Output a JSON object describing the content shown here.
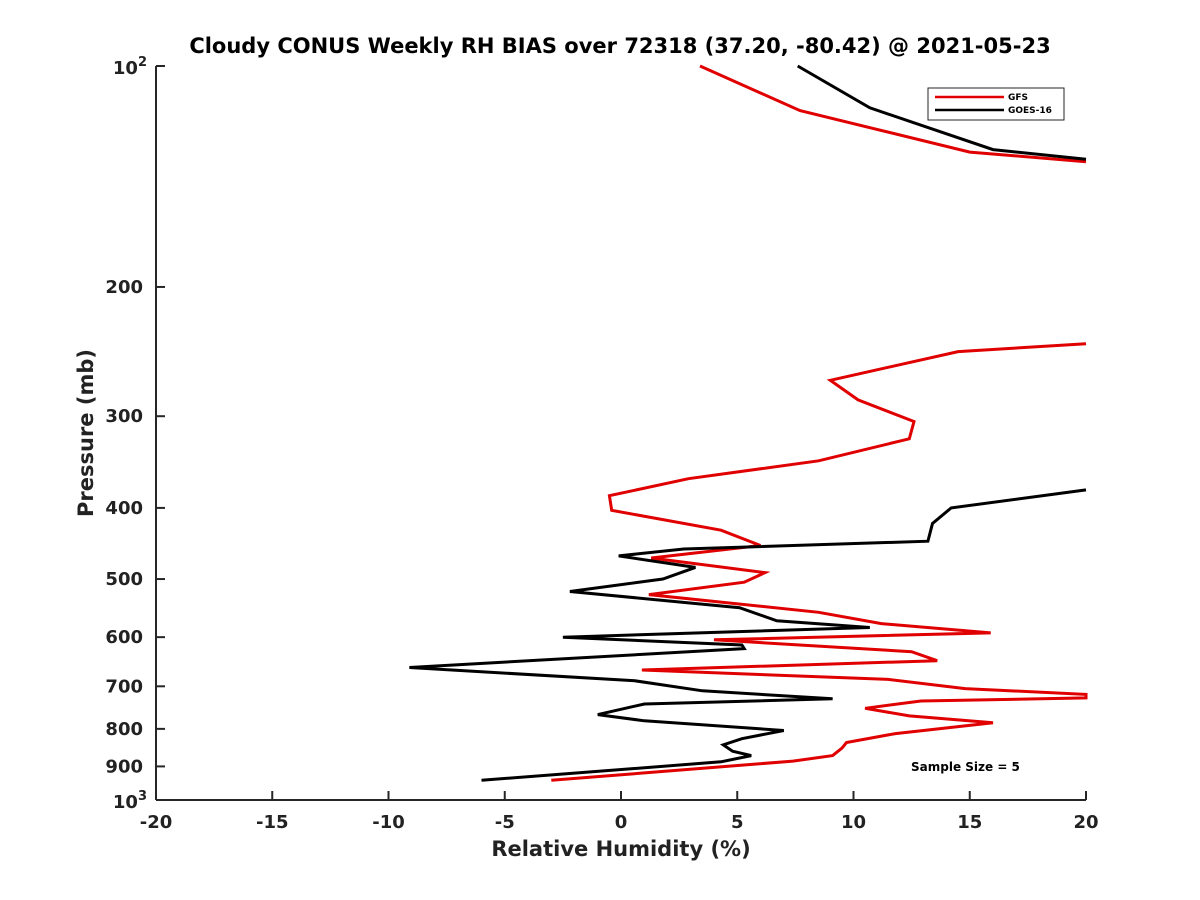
{
  "chart_data": {
    "type": "line",
    "title": "Cloudy CONUS Weekly RH BIAS over 72318 (37.20, -80.42) @ 2021-05-23",
    "xlabel": "Relative Humidity (%)",
    "ylabel": "Pressure (mb)",
    "xlim": [
      -20,
      20
    ],
    "ylim": [
      100,
      1000
    ],
    "yscale": "log",
    "y_reversed": true,
    "x_ticks": [
      -20,
      -15,
      -10,
      -5,
      0,
      5,
      10,
      15,
      20
    ],
    "x_tick_labels": [
      "-20",
      "-15",
      "-10",
      "-5",
      "0",
      "5",
      "10",
      "15",
      "20"
    ],
    "y_ticks": [
      200,
      300,
      400,
      500,
      600,
      700,
      800,
      900
    ],
    "y_tick_labels": [
      "200",
      "300",
      "400",
      "500",
      "600",
      "700",
      "800",
      "900"
    ],
    "y_end_labels": [
      {
        "value": 100,
        "base": "10",
        "exp": "2"
      },
      {
        "value": 1000,
        "base": "10",
        "exp": "3"
      }
    ],
    "annotation": "Sample Size = 5",
    "legend_position": "top-right",
    "series": [
      {
        "name": "GFS",
        "color": "#e00000",
        "segments": [
          [
            [
              3.4,
              100
            ],
            [
              7.7,
              115
            ],
            [
              15.0,
              131
            ],
            [
              20.0,
              135
            ]
          ],
          [
            [
              20.0,
              239
            ],
            [
              14.5,
              245
            ],
            [
              9.0,
              268
            ],
            [
              10.2,
              285
            ],
            [
              12.6,
              305
            ],
            [
              12.4,
              322
            ],
            [
              8.5,
              345
            ],
            [
              2.9,
              365
            ],
            [
              -0.5,
              385
            ],
            [
              -0.4,
              403
            ],
            [
              4.3,
              429
            ],
            [
              6.0,
              450
            ],
            [
              1.3,
              468
            ],
            [
              6.2,
              490
            ],
            [
              5.3,
              505
            ],
            [
              1.2,
              525
            ],
            [
              8.5,
              555
            ],
            [
              11.2,
              575
            ],
            [
              15.9,
              592
            ],
            [
              4.0,
              605
            ],
            [
              12.5,
              628
            ],
            [
              13.6,
              646
            ],
            [
              0.9,
              665
            ],
            [
              11.5,
              685
            ],
            [
              14.8,
              705
            ],
            [
              20.0,
              718
            ],
            [
              20.0,
              726
            ],
            [
              12.9,
              733
            ],
            [
              10.5,
              750
            ],
            [
              12.4,
              768
            ],
            [
              16.0,
              785
            ],
            [
              11.8,
              812
            ],
            [
              9.7,
              835
            ],
            [
              9.5,
              850
            ],
            [
              9.1,
              870
            ],
            [
              7.4,
              885
            ],
            [
              -3.0,
              940
            ]
          ]
        ]
      },
      {
        "name": "GOES-16",
        "color": "#000000",
        "segments": [
          [
            [
              7.6,
              100
            ],
            [
              10.7,
              114
            ],
            [
              16.0,
              130
            ],
            [
              20.0,
              134
            ]
          ],
          [
            [
              20.0,
              378
            ],
            [
              19.2,
              381
            ],
            [
              14.2,
              400
            ],
            [
              13.4,
              420
            ],
            [
              13.2,
              444
            ],
            [
              2.7,
              455
            ],
            [
              -0.1,
              465
            ],
            [
              3.2,
              482
            ],
            [
              1.8,
              500
            ],
            [
              -2.2,
              520
            ],
            [
              5.1,
              547
            ],
            [
              6.7,
              570
            ],
            [
              10.7,
              582
            ],
            [
              -2.5,
              600
            ],
            [
              5.2,
              615
            ],
            [
              5.3,
              622
            ],
            [
              -9.1,
              660
            ],
            [
              0.6,
              688
            ],
            [
              3.5,
              710
            ],
            [
              9.1,
              728
            ],
            [
              1.0,
              740
            ],
            [
              -1.0,
              765
            ],
            [
              1.0,
              780
            ],
            [
              7.0,
              804
            ],
            [
              5.2,
              825
            ],
            [
              4.4,
              841
            ],
            [
              4.8,
              858
            ],
            [
              5.6,
              870
            ],
            [
              4.3,
              887
            ],
            [
              -6.0,
              940
            ]
          ]
        ]
      }
    ]
  }
}
